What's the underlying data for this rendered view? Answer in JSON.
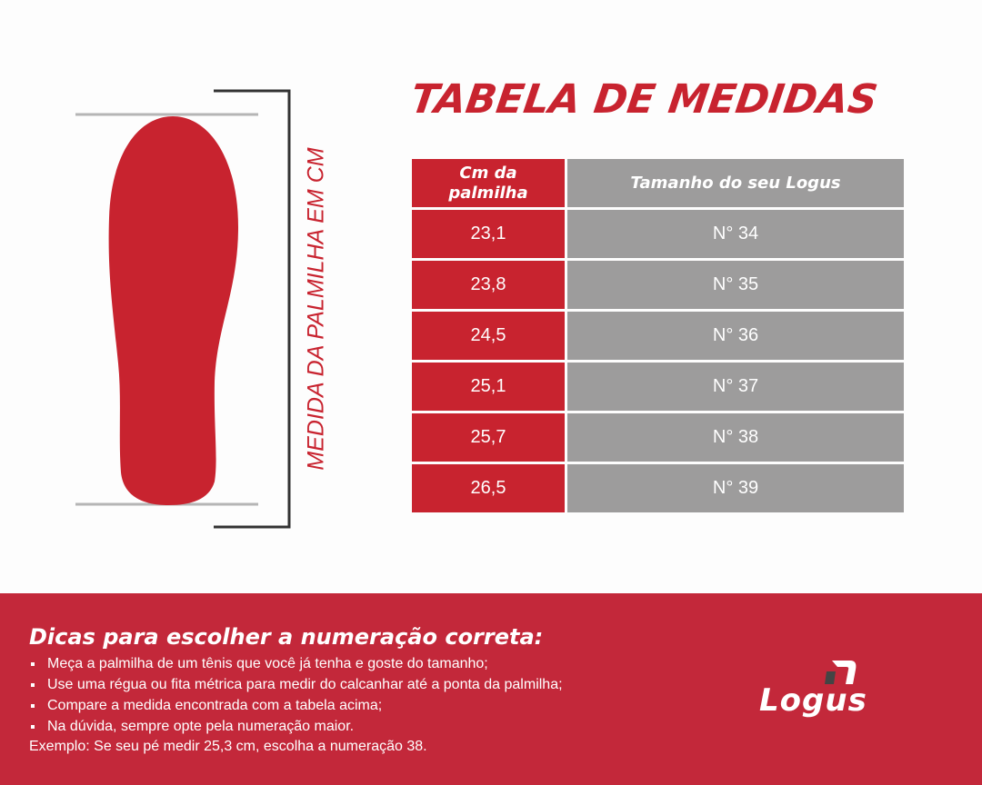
{
  "title": "TABELA DE MEDIDAS",
  "side_label": "MEDIDA DA PALMILHA EM CM",
  "table": {
    "header": [
      "Cm da palmilha",
      "Tamanho do seu Logus"
    ],
    "rows": [
      [
        "23,1",
        "N° 34"
      ],
      [
        "23,8",
        "N° 35"
      ],
      [
        "24,5",
        "N° 36"
      ],
      [
        "25,1",
        "N° 37"
      ],
      [
        "25,7",
        "N° 38"
      ],
      [
        "26,5",
        "N° 39"
      ]
    ]
  },
  "tips": {
    "heading": "Dicas para escolher a numeração correta:",
    "items": [
      "Meça a palmilha de um tênis que você já tenha e goste do tamanho;",
      "Use uma régua ou fita métrica para medir do calcanhar até a ponta da palmilha;",
      "Compare a medida encontrada com a tabela acima;",
      "Na dúvida, sempre opte pela numeração maior."
    ],
    "example": "Exemplo: Se seu pé medir 25,3 cm, escolha a numeração 38."
  },
  "logo": "Logus"
}
